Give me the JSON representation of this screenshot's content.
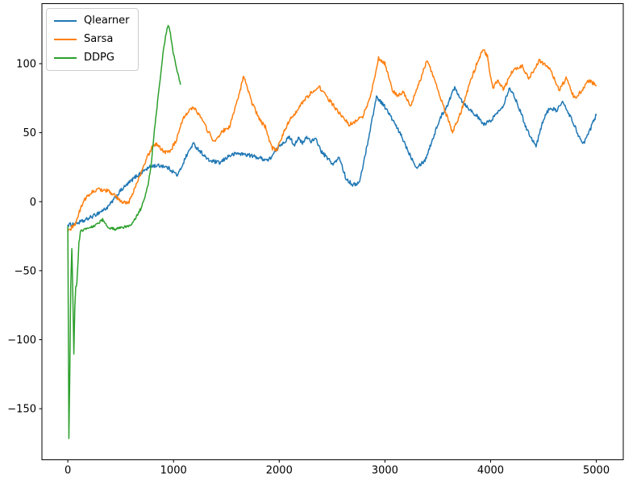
{
  "window": {
    "background": "#ffffff"
  },
  "chart_data": {
    "type": "line",
    "grid": false,
    "legend_position": "upper-left",
    "background": "#ffffff",
    "axis_color": "#000000",
    "xlim": [
      -245,
      5255
    ],
    "ylim": [
      -187,
      143.5
    ],
    "xticks": {
      "values": [
        0,
        1000,
        2000,
        3000,
        4000,
        5000
      ],
      "labels": [
        "0",
        "1000",
        "2000",
        "3000",
        "4000",
        "5000"
      ]
    },
    "yticks": {
      "values": [
        -150,
        -100,
        -50,
        0,
        50,
        100
      ],
      "labels": [
        "−150",
        "−100",
        "−50",
        "0",
        "50",
        "100"
      ]
    },
    "legend": [
      "Qlearner",
      "Sarsa",
      "DDPG"
    ],
    "series": [
      {
        "name": "Qlearner",
        "color": "#1f77b4",
        "line_width": 1.5,
        "noise_amplitude": 1.4,
        "points": [
          [
            0,
            -17
          ],
          [
            60,
            -16
          ],
          [
            150,
            -14
          ],
          [
            250,
            -10
          ],
          [
            380,
            -4
          ],
          [
            500,
            8
          ],
          [
            640,
            18
          ],
          [
            730,
            23
          ],
          [
            800,
            26
          ],
          [
            900,
            26
          ],
          [
            960,
            24
          ],
          [
            1040,
            19
          ],
          [
            1120,
            33
          ],
          [
            1185,
            42
          ],
          [
            1260,
            36
          ],
          [
            1330,
            30
          ],
          [
            1440,
            28
          ],
          [
            1520,
            33
          ],
          [
            1600,
            35
          ],
          [
            1700,
            34
          ],
          [
            1800,
            32
          ],
          [
            1900,
            30
          ],
          [
            1960,
            36
          ],
          [
            2020,
            42
          ],
          [
            2060,
            44
          ],
          [
            2100,
            47
          ],
          [
            2140,
            41
          ],
          [
            2180,
            46
          ],
          [
            2220,
            42
          ],
          [
            2260,
            47
          ],
          [
            2300,
            44
          ],
          [
            2350,
            45
          ],
          [
            2400,
            36
          ],
          [
            2450,
            32
          ],
          [
            2510,
            27
          ],
          [
            2570,
            32
          ],
          [
            2630,
            17
          ],
          [
            2700,
            12
          ],
          [
            2760,
            14
          ],
          [
            2830,
            40
          ],
          [
            2920,
            76
          ],
          [
            2990,
            70
          ],
          [
            3060,
            61
          ],
          [
            3160,
            47
          ],
          [
            3230,
            35
          ],
          [
            3300,
            25
          ],
          [
            3380,
            30
          ],
          [
            3450,
            45
          ],
          [
            3520,
            60
          ],
          [
            3590,
            70
          ],
          [
            3660,
            83
          ],
          [
            3730,
            73
          ],
          [
            3800,
            67
          ],
          [
            3870,
            62
          ],
          [
            3930,
            56
          ],
          [
            3990,
            58
          ],
          [
            4060,
            64
          ],
          [
            4120,
            70
          ],
          [
            4180,
            83
          ],
          [
            4250,
            72
          ],
          [
            4340,
            53
          ],
          [
            4430,
            40
          ],
          [
            4500,
            60
          ],
          [
            4560,
            68
          ],
          [
            4620,
            66
          ],
          [
            4680,
            72
          ],
          [
            4740,
            64
          ],
          [
            4800,
            54
          ],
          [
            4870,
            41
          ],
          [
            4930,
            50
          ],
          [
            5000,
            63
          ]
        ]
      },
      {
        "name": "Sarsa",
        "color": "#ff7f0e",
        "line_width": 1.5,
        "noise_amplitude": 1.4,
        "points": [
          [
            0,
            -22
          ],
          [
            70,
            -16
          ],
          [
            150,
            1
          ],
          [
            230,
            7
          ],
          [
            300,
            9
          ],
          [
            380,
            8
          ],
          [
            450,
            4
          ],
          [
            520,
            -1
          ],
          [
            580,
            0
          ],
          [
            640,
            11
          ],
          [
            700,
            22
          ],
          [
            750,
            32
          ],
          [
            800,
            40
          ],
          [
            840,
            42
          ],
          [
            910,
            36
          ],
          [
            970,
            37
          ],
          [
            1030,
            45
          ],
          [
            1090,
            60
          ],
          [
            1150,
            67
          ],
          [
            1200,
            68
          ],
          [
            1260,
            61
          ],
          [
            1320,
            52
          ],
          [
            1390,
            43
          ],
          [
            1460,
            51
          ],
          [
            1530,
            54
          ],
          [
            1600,
            72
          ],
          [
            1665,
            91
          ],
          [
            1730,
            74
          ],
          [
            1810,
            60
          ],
          [
            1870,
            54
          ],
          [
            1930,
            39
          ],
          [
            1975,
            37
          ],
          [
            2030,
            48
          ],
          [
            2110,
            61
          ],
          [
            2180,
            67
          ],
          [
            2250,
            75
          ],
          [
            2320,
            80
          ],
          [
            2380,
            83
          ],
          [
            2450,
            76
          ],
          [
            2520,
            69
          ],
          [
            2590,
            62
          ],
          [
            2660,
            56
          ],
          [
            2720,
            58
          ],
          [
            2790,
            62
          ],
          [
            2860,
            75
          ],
          [
            2940,
            104
          ],
          [
            3000,
            100
          ],
          [
            3070,
            81
          ],
          [
            3120,
            76
          ],
          [
            3170,
            80
          ],
          [
            3240,
            69
          ],
          [
            3320,
            85
          ],
          [
            3400,
            103
          ],
          [
            3470,
            88
          ],
          [
            3550,
            70
          ],
          [
            3640,
            50
          ],
          [
            3720,
            65
          ],
          [
            3800,
            85
          ],
          [
            3870,
            100
          ],
          [
            3930,
            111
          ],
          [
            3970,
            105
          ],
          [
            4020,
            82
          ],
          [
            4070,
            88
          ],
          [
            4120,
            81
          ],
          [
            4210,
            95
          ],
          [
            4300,
            98
          ],
          [
            4360,
            89
          ],
          [
            4460,
            102
          ],
          [
            4560,
            96
          ],
          [
            4650,
            81
          ],
          [
            4720,
            90
          ],
          [
            4790,
            75
          ],
          [
            4860,
            80
          ],
          [
            4930,
            88
          ],
          [
            5000,
            84
          ]
        ]
      },
      {
        "name": "DDPG",
        "color": "#2ca02c",
        "line_width": 1.5,
        "noise_amplitude": 1.0,
        "points": [
          [
            0,
            -18
          ],
          [
            5,
            -90
          ],
          [
            10,
            -172
          ],
          [
            18,
            -130
          ],
          [
            28,
            -60
          ],
          [
            38,
            -33
          ],
          [
            48,
            -70
          ],
          [
            57,
            -110
          ],
          [
            66,
            -78
          ],
          [
            75,
            -62
          ],
          [
            85,
            -60
          ],
          [
            95,
            -45
          ],
          [
            105,
            -30
          ],
          [
            120,
            -22
          ],
          [
            150,
            -20
          ],
          [
            200,
            -19
          ],
          [
            260,
            -17
          ],
          [
            330,
            -13
          ],
          [
            390,
            -19
          ],
          [
            450,
            -20
          ],
          [
            520,
            -19
          ],
          [
            580,
            -17
          ],
          [
            620,
            -15
          ],
          [
            660,
            -9
          ],
          [
            700,
            -4
          ],
          [
            730,
            4
          ],
          [
            760,
            12
          ],
          [
            790,
            28
          ],
          [
            820,
            52
          ],
          [
            850,
            73
          ],
          [
            880,
            93
          ],
          [
            910,
            113
          ],
          [
            935,
            124
          ],
          [
            950,
            128
          ],
          [
            965,
            124
          ],
          [
            980,
            117
          ],
          [
            1000,
            107
          ],
          [
            1020,
            100
          ],
          [
            1040,
            93
          ],
          [
            1055,
            88
          ],
          [
            1065,
            85
          ]
        ]
      }
    ]
  }
}
